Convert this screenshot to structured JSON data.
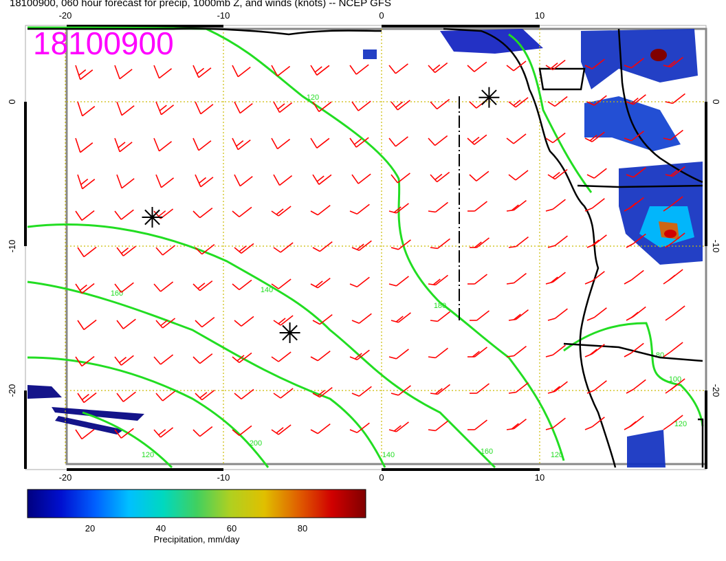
{
  "title": "18100900, 060 hour forecast for precip, 1000mb Z, and winds (knots) -- NCEP GFS",
  "stamp": "18100900",
  "map": {
    "lon_range": [
      -22.5,
      20.5
    ],
    "lat_range": [
      -25.5,
      5.0
    ],
    "lon_ticks": [
      "-20",
      "-10",
      "0",
      "10"
    ],
    "lat_ticks": [
      "0",
      "-10",
      "-20"
    ],
    "grid_color": "#ccbb00",
    "contour_color": "#22dd22",
    "barb_color": "#ff0000",
    "coast_color": "#000000",
    "contour_labels": [
      "120",
      "140",
      "160",
      "180",
      "200",
      "120",
      "140",
      "160",
      "120",
      "100",
      "80",
      "120"
    ],
    "lows_markers": [
      {
        "lon": -14.5,
        "lat": -8.0
      },
      {
        "lon": -5.8,
        "lat": -16.0
      },
      {
        "lon": 6.8,
        "lat": 0.3
      }
    ]
  },
  "colorbar": {
    "ticks": [
      "20",
      "40",
      "60",
      "80"
    ],
    "label": "Precipitation, mm/day",
    "stops": [
      "#000080",
      "#0010d0",
      "#0060ff",
      "#00c0ff",
      "#00d8c0",
      "#40d060",
      "#b0d020",
      "#e0c000",
      "#e06000",
      "#d00000",
      "#800000"
    ]
  }
}
